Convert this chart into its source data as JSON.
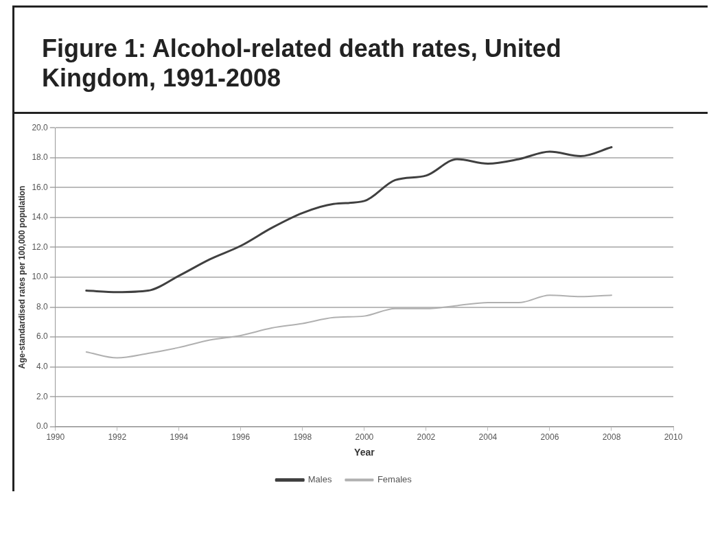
{
  "chart_data": {
    "type": "line",
    "title": "Figure 1: Alcohol-related death rates, United Kingdom, 1991-2008",
    "xlabel": "Year",
    "ylabel": "Age-standardised rates per 100,000 population",
    "x": [
      1991,
      1992,
      1993,
      1994,
      1995,
      1996,
      1997,
      1998,
      1999,
      2000,
      2001,
      2002,
      2003,
      2004,
      2005,
      2006,
      2007,
      2008
    ],
    "series": [
      {
        "name": "Males",
        "color": "#404040",
        "values": [
          9.1,
          9.0,
          9.1,
          10.1,
          11.2,
          12.1,
          13.3,
          14.3,
          14.9,
          15.1,
          16.5,
          16.8,
          17.9,
          17.6,
          17.9,
          18.4,
          18.1,
          18.7
        ]
      },
      {
        "name": "Females",
        "color": "#b0b0b0",
        "values": [
          5.0,
          4.6,
          4.9,
          5.3,
          5.8,
          6.1,
          6.6,
          6.9,
          7.3,
          7.4,
          7.9,
          7.9,
          8.1,
          8.3,
          8.3,
          8.8,
          8.7,
          8.8
        ]
      }
    ],
    "xlim": [
      1990,
      2010
    ],
    "xticks": [
      1990,
      1992,
      1994,
      1996,
      1998,
      2000,
      2002,
      2004,
      2006,
      2008,
      2010
    ],
    "ylim": [
      0,
      20
    ],
    "yticks": [
      {
        "value": 0,
        "label": "0.0"
      },
      {
        "value": 2,
        "label": "2.0"
      },
      {
        "value": 4,
        "label": "4.0"
      },
      {
        "value": 6,
        "label": "6.0"
      },
      {
        "value": 8,
        "label": "8.0"
      },
      {
        "value": 10,
        "label": "10.0"
      },
      {
        "value": 12,
        "label": "12.0"
      },
      {
        "value": 14,
        "label": "14.0"
      },
      {
        "value": 16,
        "label": "16.0"
      },
      {
        "value": 18,
        "label": "18.0"
      },
      {
        "value": 20,
        "label": "20.0"
      }
    ],
    "grid": "y",
    "legend": "bottom",
    "marker": "none",
    "line_style": "solid"
  }
}
